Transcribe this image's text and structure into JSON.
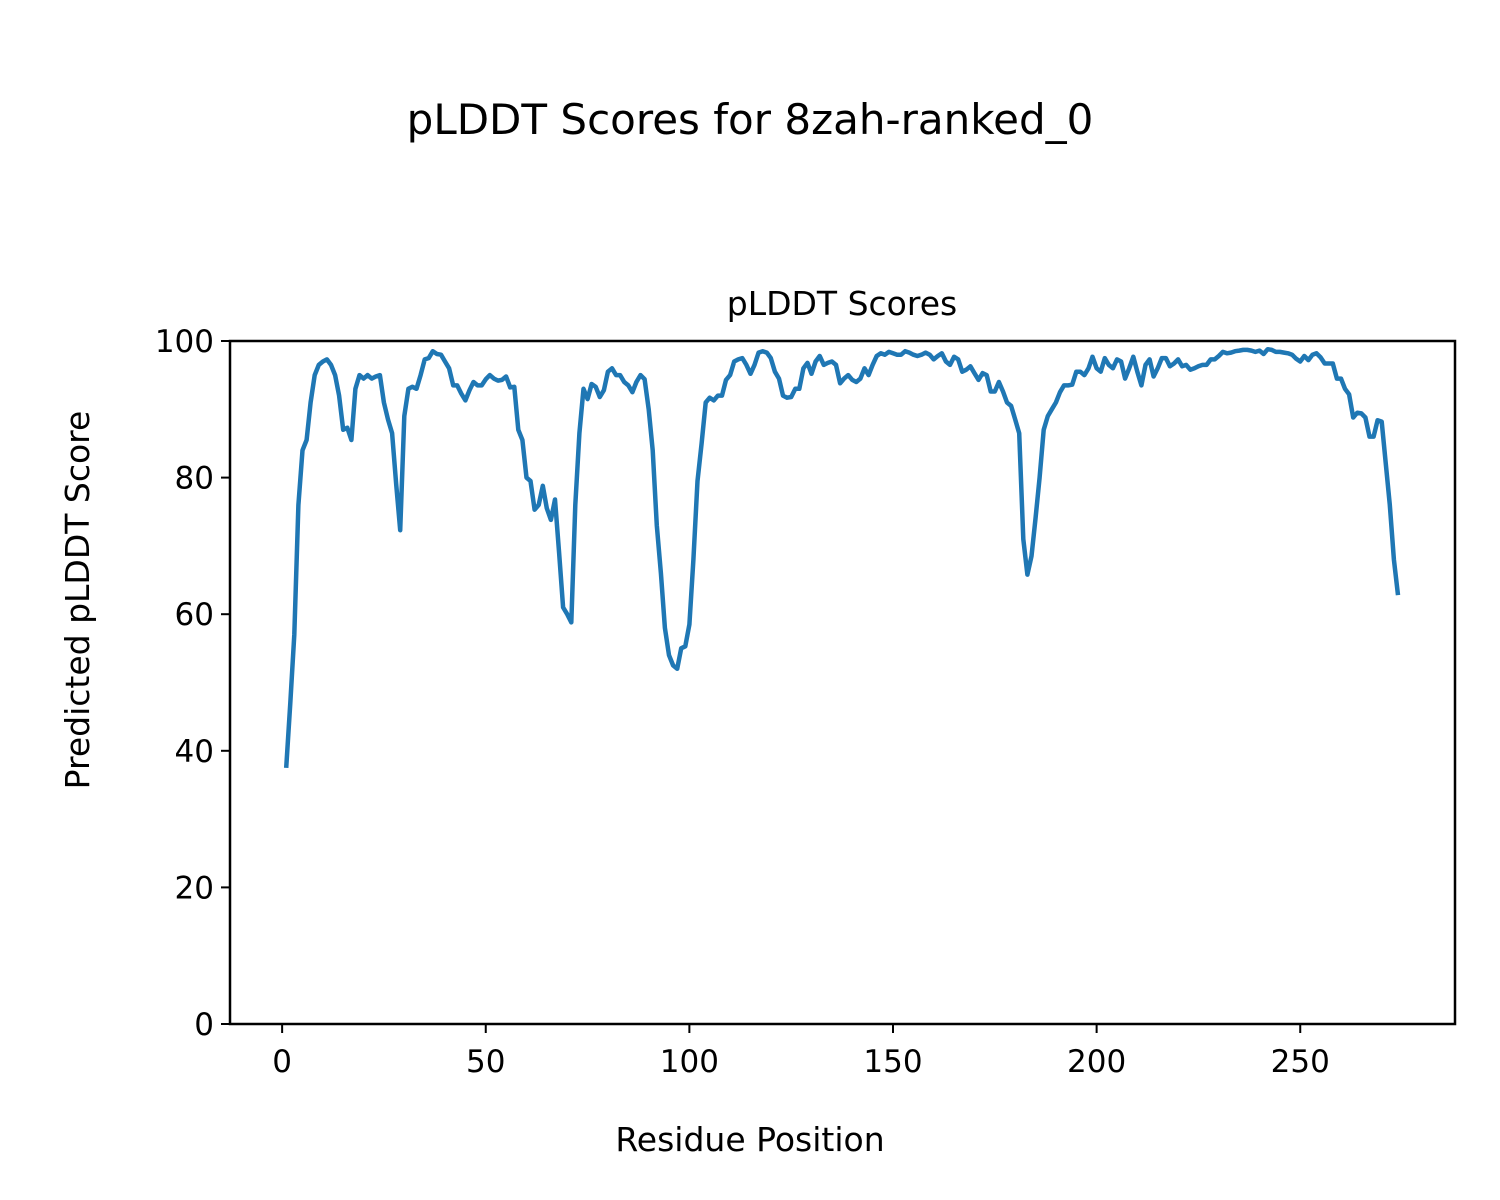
{
  "figure_title": "pLDDT Scores for 8zah-ranked_0",
  "chart_data": {
    "type": "line",
    "title": "pLDDT Scores",
    "xlabel": "Residue Position",
    "ylabel": "Predicted pLDDT Score",
    "xlim": [
      -12.8,
      288
    ],
    "ylim": [
      0,
      100
    ],
    "xticks": [
      0,
      50,
      100,
      150,
      200,
      250
    ],
    "yticks": [
      0,
      20,
      40,
      60,
      80,
      100
    ],
    "grid": false,
    "line_color": "#1f77b4",
    "x_start": 1,
    "values": [
      37.5,
      47,
      57,
      76,
      84,
      85.5,
      91,
      95,
      96.5,
      97,
      97.3,
      96.5,
      95,
      92,
      87,
      87.3,
      85.5,
      93,
      95,
      94.5,
      95,
      94.5,
      94.8,
      95,
      91,
      88.5,
      86.5,
      79,
      72.3,
      89,
      93,
      93.3,
      93,
      95,
      97.3,
      97.5,
      98.5,
      98.1,
      98,
      97,
      96,
      93.5,
      93.5,
      92.3,
      91.3,
      92.8,
      94,
      93.5,
      93.5,
      94.4,
      95,
      94.5,
      94.2,
      94.3,
      94.8,
      93.2,
      93.3,
      87,
      85.5,
      80,
      79.5,
      75.3,
      76,
      78.8,
      75.5,
      73.8,
      76.8,
      69,
      61,
      60,
      58.8,
      76,
      86.5,
      93,
      91.5,
      93.7,
      93.3,
      91.8,
      92.8,
      95.5,
      96,
      95,
      95,
      94,
      93.5,
      92.5,
      94,
      95,
      94.4,
      90,
      84,
      73,
      66,
      58,
      54,
      52.5,
      52,
      55,
      55.3,
      58.5,
      68,
      79.5,
      85,
      91,
      91.7,
      91.3,
      92,
      92,
      94.3,
      95,
      97,
      97.3,
      97.5,
      96.5,
      95.2,
      96.5,
      98.3,
      98.5,
      98.3,
      97.5,
      95.5,
      94.5,
      92,
      91.7,
      91.8,
      93,
      93,
      96,
      96.8,
      95.2,
      97,
      97.8,
      96.5,
      96.8,
      97,
      96.5,
      93.8,
      94.5,
      95,
      94.3,
      94,
      94.5,
      96,
      95,
      96.5,
      97.8,
      98.2,
      98,
      98.4,
      98.2,
      98,
      98,
      98.5,
      98.3,
      98,
      97.8,
      98,
      98.3,
      98,
      97.3,
      97.8,
      98.2,
      97,
      96.5,
      97.7,
      97.3,
      95.5,
      95.8,
      96.3,
      95.3,
      94.3,
      95.3,
      95,
      92.6,
      92.6,
      94,
      92.6,
      91,
      90.5,
      88.5,
      86.5,
      71,
      65.8,
      68.5,
      74,
      80,
      87,
      89,
      90,
      91,
      92.5,
      93.5,
      93.5,
      93.6,
      95.5,
      95.5,
      95,
      96,
      97.7,
      96,
      95.5,
      97.5,
      96.5,
      96,
      97.3,
      97,
      94.5,
      96,
      97.7,
      95.5,
      93.5,
      96.5,
      97.3,
      94.8,
      96,
      97.5,
      97.5,
      96.3,
      96.7,
      97.3,
      96.3,
      96.5,
      95.8,
      96,
      96.3,
      96.5,
      96.5,
      97.3,
      97.3,
      97.8,
      98.4,
      98.2,
      98.3,
      98.5,
      98.6,
      98.7,
      98.7,
      98.6,
      98.4,
      98.6,
      98.1,
      98.8,
      98.7,
      98.4,
      98.4,
      98.3,
      98.2,
      98,
      97.4,
      97,
      97.8,
      97.2,
      98,
      98.2,
      97.6,
      96.7,
      96.7,
      96.7,
      94.5,
      94.5,
      93,
      92.2,
      88.8,
      89.5,
      89.4,
      88.8,
      86,
      86,
      88.4,
      88.2,
      82,
      76,
      68,
      62.8
    ]
  }
}
